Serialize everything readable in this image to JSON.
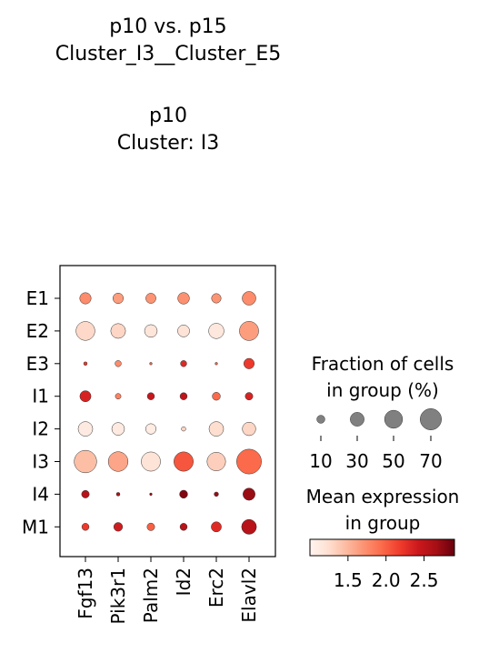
{
  "title": {
    "lines": [
      "p10 vs. p15",
      "Cluster_I3__Cluster_E5",
      "",
      "p10",
      "Cluster: I3"
    ]
  },
  "chart_data": {
    "type": "dotplot",
    "genes": [
      "Fgf13",
      "Pik3r1",
      "Palm2",
      "Id2",
      "Erc2",
      "Elavl2"
    ],
    "groups": [
      "E1",
      "E2",
      "E3",
      "I1",
      "I2",
      "I3",
      "I4",
      "M1"
    ],
    "fraction_pct": [
      [
        20,
        17,
        16,
        21,
        14,
        29
      ],
      [
        55,
        34,
        25,
        22,
        36,
        57
      ],
      [
        2,
        6,
        1,
        6,
        1,
        17
      ],
      [
        19,
        5,
        8,
        8,
        10,
        9
      ],
      [
        33,
        25,
        17,
        3,
        33,
        28
      ],
      [
        78,
        60,
        57,
        58,
        53,
        95
      ],
      [
        9,
        2,
        1,
        10,
        3,
        23
      ],
      [
        8,
        12,
        9,
        8,
        16,
        34
      ]
    ],
    "mean_expression": [
      [
        1.75,
        1.65,
        1.7,
        1.72,
        1.7,
        1.75
      ],
      [
        1.28,
        1.3,
        1.18,
        1.2,
        1.16,
        1.65
      ],
      [
        2.2,
        1.75,
        2.0,
        2.3,
        2.0,
        2.2
      ],
      [
        2.35,
        1.8,
        2.45,
        2.5,
        1.95,
        2.35
      ],
      [
        1.12,
        1.12,
        1.1,
        1.3,
        1.25,
        1.3
      ],
      [
        1.45,
        1.6,
        1.2,
        2.05,
        1.35,
        1.95
      ],
      [
        2.55,
        2.6,
        2.7,
        2.8,
        2.7,
        2.7
      ],
      [
        2.2,
        2.4,
        2.0,
        2.55,
        2.3,
        2.55
      ]
    ],
    "size_legend": {
      "title": [
        "Fraction of cells",
        "in group (%)"
      ],
      "values": [
        10,
        30,
        50,
        70
      ],
      "labels": [
        "10",
        "30",
        "50",
        "70"
      ]
    },
    "color_legend": {
      "title": [
        "Mean expression",
        "in group"
      ],
      "range": [
        1.0,
        2.9
      ],
      "ticks": [
        1.5,
        2.0,
        2.5
      ],
      "tick_labels": [
        "1.5",
        "2.0",
        "2.5"
      ],
      "colormap": "Reds"
    },
    "grid": false
  }
}
